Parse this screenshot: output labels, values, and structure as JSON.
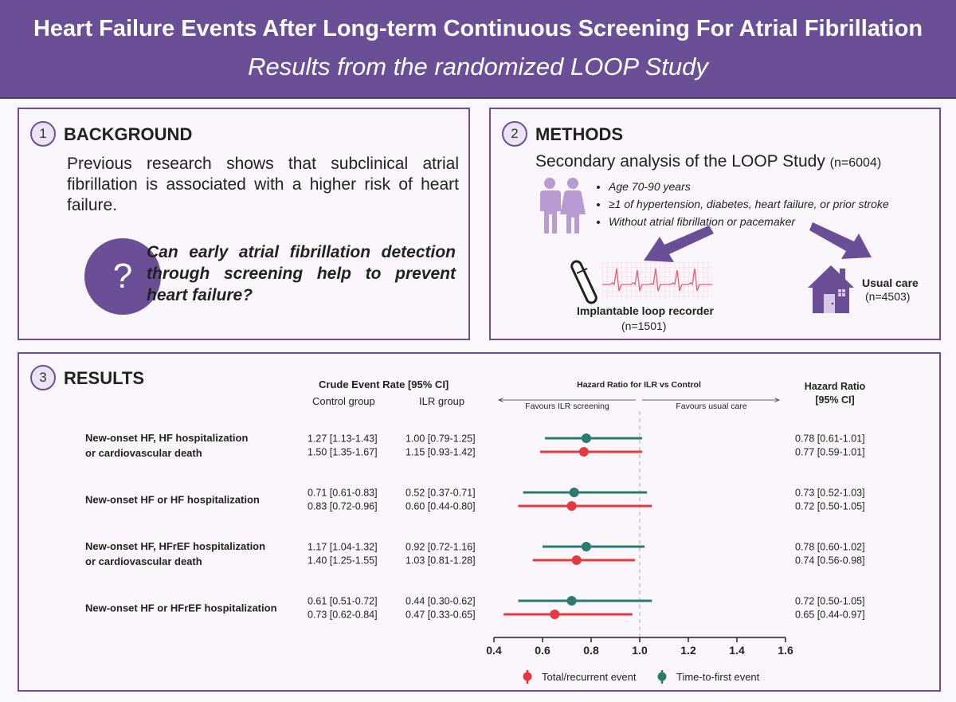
{
  "header": {
    "title": "Heart Failure Events After Long-term Continuous Screening For Atrial Fibrillation",
    "subtitle": "Results from the randomized LOOP Study"
  },
  "background": {
    "number": "1",
    "title": "BACKGROUND",
    "text": "Previous research shows that subclinical atrial fibrillation is associated with a higher risk of heart failure.",
    "question_mark": "?",
    "question": "Can early atrial fibrillation detection through screening help to prevent heart failure?"
  },
  "methods": {
    "number": "2",
    "title": "METHODS",
    "heading": "Secondary analysis of the LOOP Study",
    "heading_n": "(n=6004)",
    "criteria": [
      "Age 70-90 years",
      "≥1 of hypertension, diabetes, heart failure, or prior stroke",
      "Without atrial fibrillation or pacemaker"
    ],
    "ilr_label": "Implantable loop recorder",
    "ilr_n": "(n=1501)",
    "usual_label": "Usual care",
    "usual_n": "(n=4503)",
    "colors": {
      "accent": "#6b4f96",
      "ecg": "#e06070"
    }
  },
  "results": {
    "number": "3",
    "title": "RESULTS"
  },
  "chart_data": {
    "type": "scatter",
    "subtype": "forest-plot",
    "title": "Hazard Ratio for ILR vs Control",
    "favours_left": "Favours ILR screening",
    "favours_right": "Favours usual care",
    "crude_header": "Crude Event Rate [95% CI]",
    "control_header": "Control group",
    "ilr_header": "ILR group",
    "hr_header_line1": "Hazard Ratio",
    "hr_header_line2": "[95% CI]",
    "xlim": [
      0.4,
      1.6
    ],
    "xticks": [
      "0.4",
      "0.6",
      "0.8",
      "1.0",
      "1.2",
      "1.4",
      "1.6"
    ],
    "reference_line": 1.0,
    "legend": [
      {
        "name": "Total/recurrent event",
        "color": "#e5393f"
      },
      {
        "name": "Time-to-first event",
        "color": "#2a7a70"
      }
    ],
    "outcomes": [
      {
        "label_lines": [
          "New-onset HF, HF hospitalization",
          "or cardiovascular death"
        ],
        "rows": [
          {
            "series": "Time-to-first event",
            "control": "1.27 [1.13-1.43]",
            "ilr": "1.00 [0.79-1.25]",
            "hr": 0.78,
            "lo": 0.61,
            "hi": 1.01,
            "hr_text": "0.78 [0.61-1.01]"
          },
          {
            "series": "Total/recurrent event",
            "control": "1.50 [1.35-1.67]",
            "ilr": "1.15 [0.93-1.42]",
            "hr": 0.77,
            "lo": 0.59,
            "hi": 1.01,
            "hr_text": "0.77 [0.59-1.01]"
          }
        ]
      },
      {
        "label_lines": [
          "New-onset HF or HF hospitalization"
        ],
        "rows": [
          {
            "series": "Time-to-first event",
            "control": "0.71 [0.61-0.83]",
            "ilr": "0.52 [0.37-0.71]",
            "hr": 0.73,
            "lo": 0.52,
            "hi": 1.03,
            "hr_text": "0.73 [0.52-1.03]"
          },
          {
            "series": "Total/recurrent event",
            "control": "0.83 [0.72-0.96]",
            "ilr": "0.60 [0.44-0.80]",
            "hr": 0.72,
            "lo": 0.5,
            "hi": 1.05,
            "hr_text": "0.72 [0.50-1.05]"
          }
        ]
      },
      {
        "label_lines": [
          "New-onset HF, HFrEF hospitalization",
          "or cardiovascular death"
        ],
        "rows": [
          {
            "series": "Time-to-first event",
            "control": "1.17 [1.04-1.32]",
            "ilr": "0.92 [0.72-1.16]",
            "hr": 0.78,
            "lo": 0.6,
            "hi": 1.02,
            "hr_text": "0.78 [0.60-1.02]"
          },
          {
            "series": "Total/recurrent event",
            "control": "1.40 [1.25-1.55]",
            "ilr": "1.03 [0.81-1.28]",
            "hr": 0.74,
            "lo": 0.56,
            "hi": 0.98,
            "hr_text": "0.74 [0.56-0.98]"
          }
        ]
      },
      {
        "label_lines": [
          "New-onset HF or HFrEF hospitalization"
        ],
        "rows": [
          {
            "series": "Time-to-first event",
            "control": "0.61 [0.51-0.72]",
            "ilr": "0.44 [0.30-0.62]",
            "hr": 0.72,
            "lo": 0.5,
            "hi": 1.05,
            "hr_text": "0.72 [0.50-1.05]"
          },
          {
            "series": "Total/recurrent event",
            "control": "0.73 [0.62-0.84]",
            "ilr": "0.47 [0.33-0.65]",
            "hr": 0.65,
            "lo": 0.44,
            "hi": 0.97,
            "hr_text": "0.65 [0.44-0.97]"
          }
        ]
      }
    ]
  }
}
